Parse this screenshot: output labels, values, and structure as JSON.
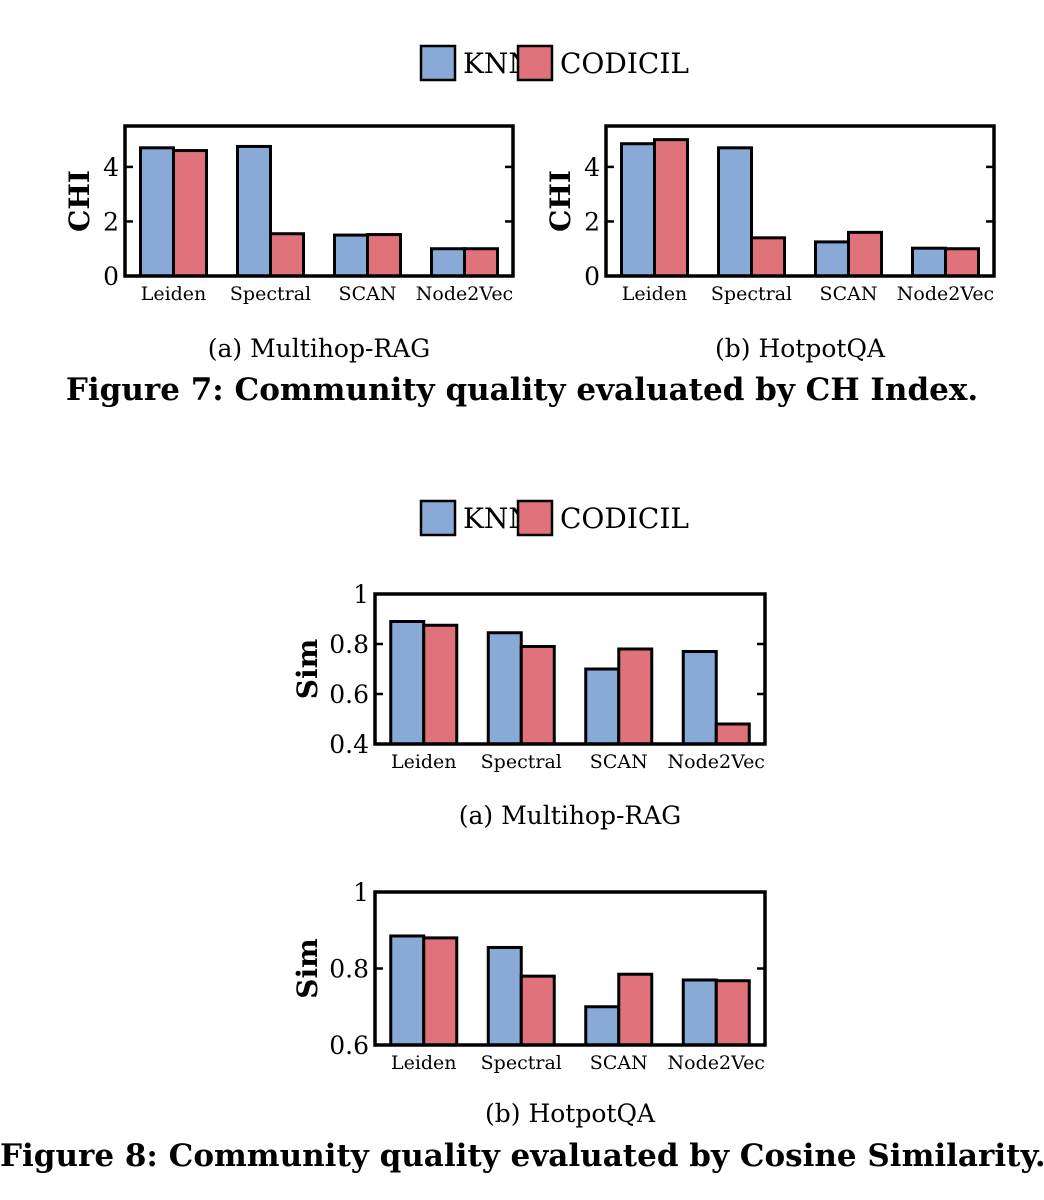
{
  "figure7": {
    "caption": "Figure 7: Community quality evaluated by CH Index.",
    "legend": [
      {
        "label": "KNN",
        "color": "#89a9d6"
      },
      {
        "label": "CODICIL",
        "color": "#df727a"
      }
    ]
  },
  "figure8": {
    "caption": "Figure 8: Community quality evaluated by Cosine Similarity.",
    "legend": [
      {
        "label": "KNN",
        "color": "#89a9d6"
      },
      {
        "label": "CODICIL",
        "color": "#df727a"
      }
    ]
  },
  "chart_data": [
    {
      "type": "bar",
      "subcaption": "(a)  Multihop-RAG",
      "categories": [
        "Leiden",
        "Spectral",
        "SCAN",
        "Node2Vec"
      ],
      "series": [
        {
          "name": "KNN",
          "values": [
            4.7,
            4.75,
            1.5,
            1.0
          ]
        },
        {
          "name": "CODICIL",
          "values": [
            4.6,
            1.55,
            1.52,
            1.0
          ]
        }
      ],
      "ylabel": "CHI",
      "ylim": [
        0,
        5.5
      ],
      "yticks": [
        0,
        2,
        4
      ],
      "ytick_labels": [
        "0",
        "2",
        "4"
      ]
    },
    {
      "type": "bar",
      "subcaption": "(b)  HotpotQA",
      "categories": [
        "Leiden",
        "Spectral",
        "SCAN",
        "Node2Vec"
      ],
      "series": [
        {
          "name": "KNN",
          "values": [
            4.85,
            4.7,
            1.25,
            1.02
          ]
        },
        {
          "name": "CODICIL",
          "values": [
            5.0,
            1.4,
            1.6,
            1.0
          ]
        }
      ],
      "ylabel": "CHI",
      "ylim": [
        0,
        5.5
      ],
      "yticks": [
        0,
        2,
        4
      ],
      "ytick_labels": [
        "0",
        "2",
        "4"
      ]
    },
    {
      "type": "bar",
      "subcaption": "(a)  Multihop-RAG",
      "categories": [
        "Leiden",
        "Spectral",
        "SCAN",
        "Node2Vec"
      ],
      "series": [
        {
          "name": "KNN",
          "values": [
            0.89,
            0.845,
            0.7,
            0.77
          ]
        },
        {
          "name": "CODICIL",
          "values": [
            0.875,
            0.79,
            0.78,
            0.48
          ]
        }
      ],
      "ylabel": "Sim",
      "ylim": [
        0.4,
        1.0
      ],
      "yticks": [
        0.4,
        0.6,
        0.8,
        1.0
      ],
      "ytick_labels": [
        "0.4",
        "0.6",
        "0.8",
        "1"
      ]
    },
    {
      "type": "bar",
      "subcaption": "(b)  HotpotQA",
      "categories": [
        "Leiden",
        "Spectral",
        "SCAN",
        "Node2Vec"
      ],
      "series": [
        {
          "name": "KNN",
          "values": [
            0.885,
            0.855,
            0.7,
            0.77
          ]
        },
        {
          "name": "CODICIL",
          "values": [
            0.88,
            0.78,
            0.785,
            0.768
          ]
        }
      ],
      "ylabel": "Sim",
      "ylim": [
        0.6,
        1.0
      ],
      "yticks": [
        0.6,
        0.8,
        1.0
      ],
      "ytick_labels": [
        "0.6",
        "0.8",
        "1"
      ]
    }
  ]
}
